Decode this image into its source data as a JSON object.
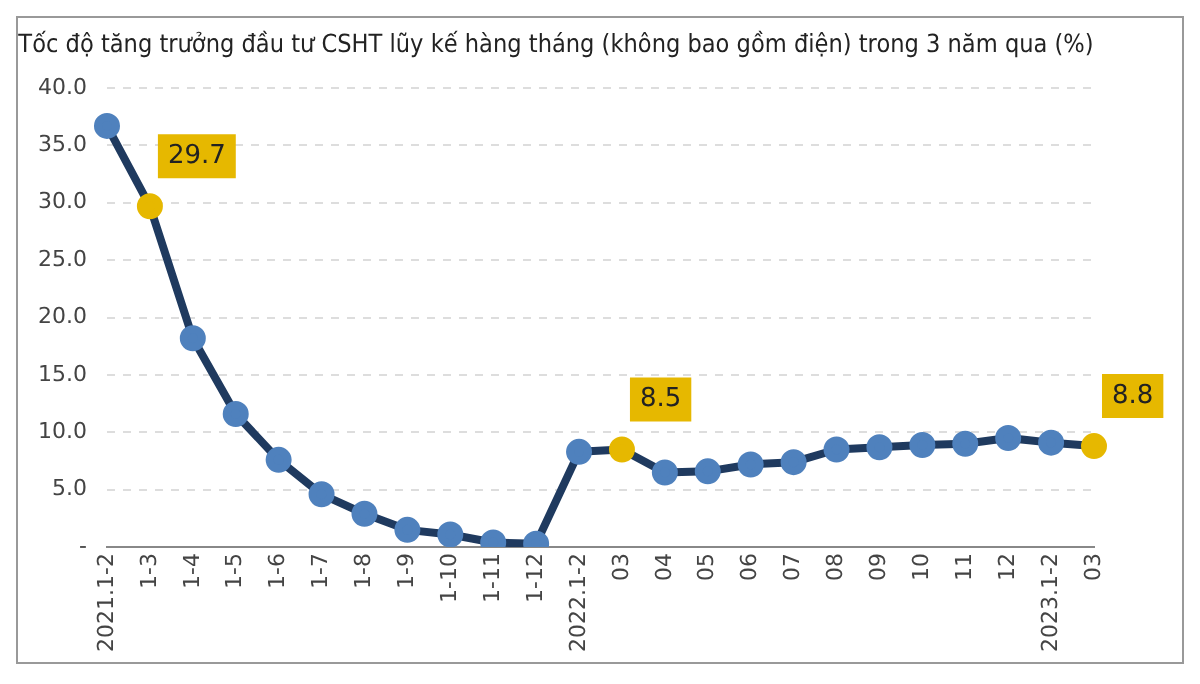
{
  "chart_data": {
    "type": "line",
    "title": "Tốc độ tăng trưởng đầu tư CSHT lũy kế hàng tháng (không bao gồm điện) trong 3 năm qua (%)",
    "categories": [
      "2021.1-2",
      "1-3",
      "1-4",
      "1-5",
      "1-6",
      "1-7",
      "1-8",
      "1-9",
      "1-10",
      "1-11",
      "1-12",
      "2022.1-2",
      "03",
      "04",
      "05",
      "06",
      "07",
      "08",
      "09",
      "10",
      "11",
      "12",
      "2023.1-2",
      "03"
    ],
    "series": [
      {
        "color": "#1f3a5f",
        "values": [
          36.7,
          29.7,
          18.2,
          11.6,
          7.6,
          4.6,
          2.9,
          1.5,
          1.1,
          0.4,
          0.3,
          8.3,
          8.5,
          6.5,
          6.6,
          7.2,
          7.4,
          8.5,
          8.7,
          8.9,
          9.0,
          9.5,
          9.1,
          8.8
        ],
        "colors": [
          "#4f81bd",
          "#e6b800",
          "#4f81bd",
          "#4f81bd",
          "#4f81bd",
          "#4f81bd",
          "#4f81bd",
          "#4f81bd",
          "#4f81bd",
          "#4f81bd",
          "#4f81bd",
          "#4f81bd",
          "#e6b800",
          "#4f81bd",
          "#4f81bd",
          "#4f81bd",
          "#4f81bd",
          "#4f81bd",
          "#4f81bd",
          "#4f81bd",
          "#4f81bd",
          "#4f81bd",
          "#4f81bd",
          "#e6b800"
        ],
        "value_labels": [
          null,
          "29.7",
          null,
          null,
          null,
          null,
          null,
          null,
          null,
          null,
          null,
          null,
          "8.5",
          null,
          null,
          null,
          null,
          null,
          null,
          null,
          null,
          null,
          null,
          "8.8"
        ]
      }
    ],
    "ylim": [
      0,
      40
    ],
    "yticks": [
      {
        "value": 0,
        "label": "-"
      },
      {
        "value": 5,
        "label": "5.0"
      },
      {
        "value": 10,
        "label": "10.0"
      },
      {
        "value": 15,
        "label": "15.0"
      },
      {
        "value": 20,
        "label": "20.0"
      },
      {
        "value": 25,
        "label": "25.0"
      },
      {
        "value": 30,
        "label": "30.0"
      },
      {
        "value": 35,
        "label": "35.0"
      },
      {
        "value": 40,
        "label": "40.0"
      }
    ],
    "grid": "y",
    "marker": "circle",
    "line_style": "solid",
    "legend": false
  }
}
